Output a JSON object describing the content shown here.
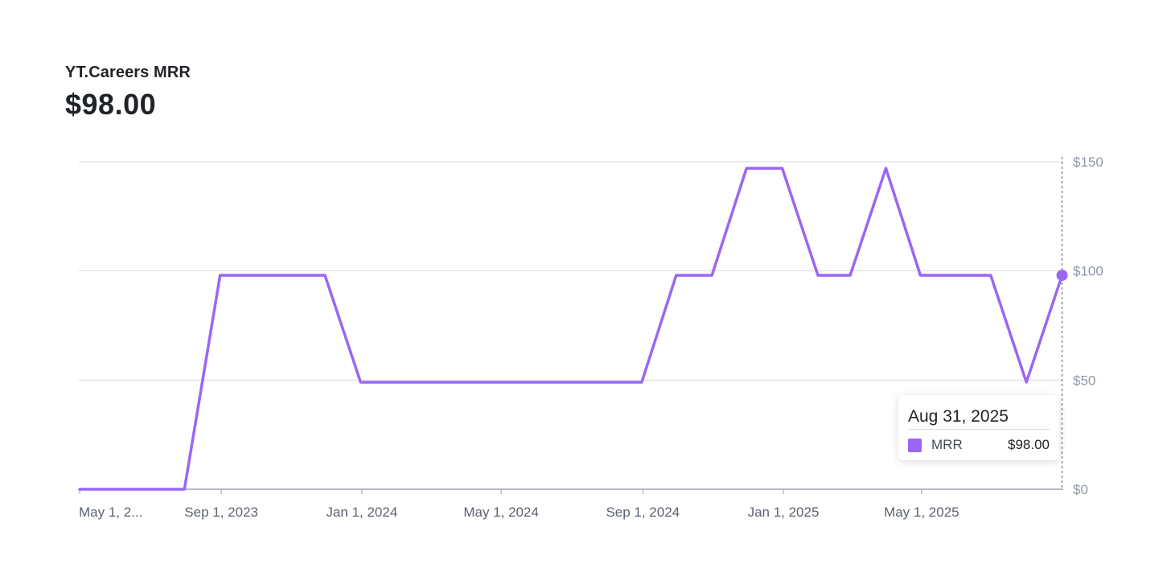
{
  "header": {
    "title": "YT.Careers MRR",
    "current_value": "$98.00"
  },
  "tooltip": {
    "date": "Aug 31, 2025",
    "series_name": "MRR",
    "value": "$98.00"
  },
  "colors": {
    "line": "#9b66f5",
    "grid": "#d9dce1",
    "axis_text": "#8e98a7",
    "x_text": "#5b6370"
  },
  "chart_data": {
    "type": "line",
    "title": "YT.Careers MRR",
    "xlabel": "",
    "ylabel": "",
    "ylim": [
      0,
      150
    ],
    "y_ticks": [
      0,
      50,
      100,
      150
    ],
    "y_tick_labels": [
      "$0",
      "$50",
      "$100",
      "$150"
    ],
    "x_range": [
      "2023-05-01",
      "2025-09-01"
    ],
    "x_ticks": [
      "2023-05-01",
      "2023-09-01",
      "2024-01-01",
      "2024-05-01",
      "2024-09-01",
      "2025-01-01",
      "2025-05-01"
    ],
    "x_tick_labels": [
      "May 1, 2...",
      "Sep 1, 2023",
      "Jan 1, 2024",
      "May 1, 2024",
      "Sep 1, 2024",
      "Jan 1, 2025",
      "May 1, 2025"
    ],
    "grid": true,
    "y_axis_position": "right",
    "series": [
      {
        "name": "MRR",
        "color": "#9b66f5",
        "points": [
          {
            "x": "2023-05-01",
            "y": 0
          },
          {
            "x": "2023-07-31",
            "y": 0
          },
          {
            "x": "2023-08-31",
            "y": 98
          },
          {
            "x": "2023-11-30",
            "y": 98
          },
          {
            "x": "2023-12-31",
            "y": 49
          },
          {
            "x": "2024-08-31",
            "y": 49
          },
          {
            "x": "2024-09-30",
            "y": 98
          },
          {
            "x": "2024-10-31",
            "y": 98
          },
          {
            "x": "2024-11-30",
            "y": 147
          },
          {
            "x": "2024-12-31",
            "y": 147
          },
          {
            "x": "2025-01-31",
            "y": 98
          },
          {
            "x": "2025-02-28",
            "y": 98
          },
          {
            "x": "2025-03-31",
            "y": 147
          },
          {
            "x": "2025-04-30",
            "y": 98
          },
          {
            "x": "2025-06-30",
            "y": 98
          },
          {
            "x": "2025-07-31",
            "y": 49
          },
          {
            "x": "2025-08-31",
            "y": 98
          }
        ]
      }
    ],
    "highlight": {
      "x": "2025-08-31",
      "y": 98
    }
  }
}
